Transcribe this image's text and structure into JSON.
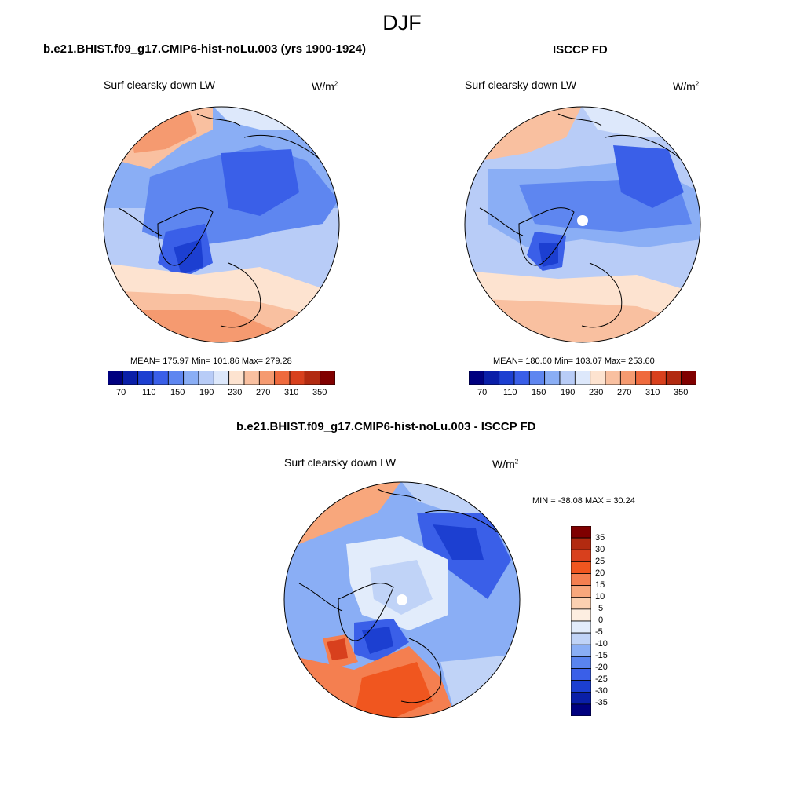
{
  "page": {
    "title": "DJF"
  },
  "panels": [
    {
      "id": "model",
      "title": "b.e21.BHIST.f09_g17.CMIP6-hist-noLu.003 (yrs 1900-1924)",
      "variable": "Surf clearsky down LW",
      "units": "W/m",
      "units_sup": "2",
      "stats": "MEAN= 175.97  Min= 101.86  Max= 279.28",
      "colorbar_ticks": [
        "70",
        "110",
        "150",
        "190",
        "230",
        "270",
        "310",
        "350"
      ]
    },
    {
      "id": "obs",
      "title": "ISCCP FD",
      "variable": "Surf clearsky down LW",
      "units": "W/m",
      "units_sup": "2",
      "stats": "MEAN= 180.60  Min= 103.07  Max= 253.60",
      "colorbar_ticks": [
        "70",
        "110",
        "150",
        "190",
        "230",
        "270",
        "310",
        "350"
      ]
    },
    {
      "id": "diff",
      "title": "b.e21.BHIST.f09_g17.CMIP6-hist-noLu.003 - ISCCP FD",
      "variable": "Surf clearsky down LW",
      "units": "W/m",
      "units_sup": "2",
      "stats": "MIN = -38.08 MAX =  30.24",
      "colorbar_ticks": [
        "35",
        "30",
        "25",
        "20",
        "15",
        "10",
        "5",
        "0",
        "-5",
        "-10",
        "-15",
        "-20",
        "-25",
        "-30",
        "-35"
      ]
    }
  ],
  "colors": {
    "abs_scale": [
      "#00007f",
      "#0a1fa8",
      "#1c3fd1",
      "#3a5fe8",
      "#5e86f0",
      "#8aaef5",
      "#b8ccf7",
      "#dde8fb",
      "#fde3d0",
      "#f9c0a0",
      "#f59a70",
      "#ef6a3d",
      "#d8401d",
      "#b22a10",
      "#800000"
    ],
    "diff_scale": [
      "#7f0000",
      "#b22a10",
      "#d8401d",
      "#f0561f",
      "#f47f50",
      "#f8a77c",
      "#fbd0b1",
      "#fdeee1",
      "#e2ecfb",
      "#c0d3f7",
      "#8aaef5",
      "#5a84ef",
      "#3a5fe8",
      "#1c3fd1",
      "#0a1fa8",
      "#00007f"
    ]
  }
}
